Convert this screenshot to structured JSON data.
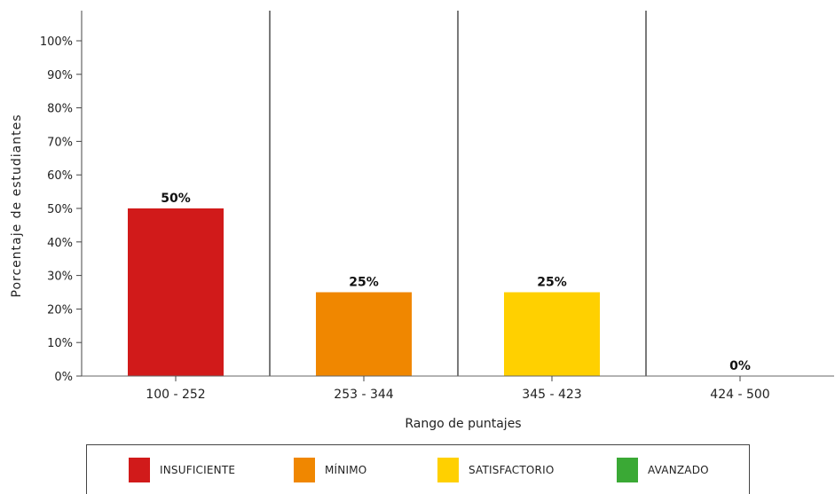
{
  "chart_data": {
    "type": "bar",
    "title": "",
    "xlabel": "Rango de puntajes",
    "ylabel": "Porcentaje de estudiantes",
    "ylim": [
      0,
      100
    ],
    "yticks": [
      "0%",
      "10%",
      "20%",
      "30%",
      "40%",
      "50%",
      "60%",
      "70%",
      "80%",
      "90%",
      "100%"
    ],
    "categories": [
      "100 - 252",
      "253 - 344",
      "345 - 423",
      "424 - 500"
    ],
    "values": [
      50,
      25,
      25,
      0
    ],
    "data_labels": [
      "50%",
      "25%",
      "25%",
      "0%"
    ],
    "colors": [
      "#d11a1a",
      "#f08700",
      "#ffd000",
      "#3aa935"
    ],
    "grid": false,
    "legend_position": "bottom"
  },
  "legend": {
    "items": [
      {
        "label": "INSUFICIENTE",
        "color": "#d11a1a"
      },
      {
        "label": "MÍNIMO",
        "color": "#f08700"
      },
      {
        "label": "SATISFACTORIO",
        "color": "#ffd000"
      },
      {
        "label": "AVANZADO",
        "color": "#3aa935"
      }
    ]
  }
}
